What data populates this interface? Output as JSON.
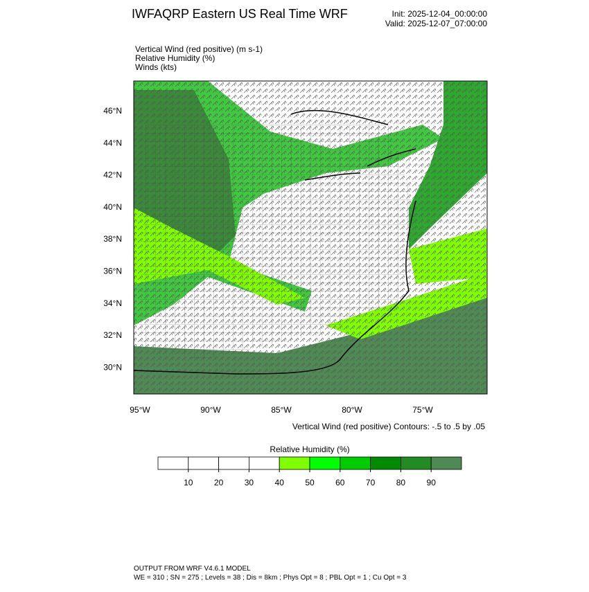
{
  "header": {
    "title": "IWFAQRP Eastern US Real Time WRF",
    "init": "Init: 2025-12-04_00:00:00",
    "valid": "Valid: 2025-12-07_07:00:00"
  },
  "fields": [
    "Vertical Wind (red positive)   (m s-1)",
    "Relative Humidity   (%)",
    "Winds   (kts)"
  ],
  "map": {
    "lat_labels": [
      "46°N",
      "44°N",
      "42°N",
      "40°N",
      "38°N",
      "36°N",
      "34°N",
      "32°N",
      "30°N"
    ],
    "lon_labels": [
      "95°W",
      "90°W",
      "85°W",
      "80°W",
      "75°W"
    ],
    "contour_note": "Vertical Wind (red positive) Contours: -.5 to .5 by .05"
  },
  "colorbar": {
    "title": "Relative Humidity  (%)",
    "ticks": [
      10,
      20,
      30,
      40,
      50,
      60,
      70,
      80,
      90
    ],
    "range": [
      0,
      100
    ],
    "colors": [
      "#ffffff",
      "#ffffff",
      "#ffffff",
      "#ffffff",
      "#80ff00",
      "#00ff00",
      "#00cd00",
      "#008b00",
      "#228b22",
      "#4f8a55"
    ]
  },
  "footer": [
    "OUTPUT FROM WRF V4.6.1 MODEL",
    "WE = 310 ; SN = 275 ; Levels = 38 ; Dis = 8km ; Phys Opt = 8 ; PBL Opt = 1 ; Cu Opt = 3"
  ]
}
